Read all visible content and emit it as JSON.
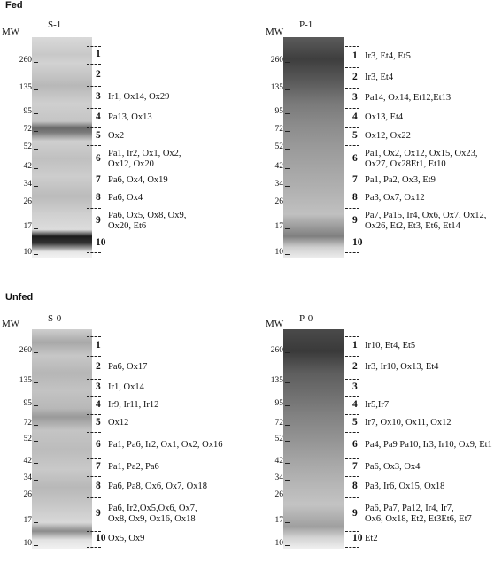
{
  "panels": [
    {
      "id": "S-1",
      "condition": "Fed",
      "mw_label": "MW",
      "lane_label": "S-1",
      "mw_ticks": [
        "260",
        "135",
        "95",
        "72",
        "52",
        "42",
        "34",
        "26",
        "17",
        "10"
      ],
      "bands": [
        {
          "num": "1",
          "text": ""
        },
        {
          "num": "2",
          "text": ""
        },
        {
          "num": "3",
          "text": "Ir1, Ox14, Ox29"
        },
        {
          "num": "4",
          "text": "Pa13, Ox13"
        },
        {
          "num": "5",
          "text": "Ox2"
        },
        {
          "num": "6",
          "text": "Pa1, Ir2, Ox1, Ox2,\nOx12, Ox20"
        },
        {
          "num": "7",
          "text": "Pa6, Ox4, Ox19"
        },
        {
          "num": "8",
          "text": "Pa6, Ox4"
        },
        {
          "num": "9",
          "text": "Pa6, Ox5, Ox8, Ox9,\nOx20, Et6"
        },
        {
          "num": "10",
          "text": ""
        }
      ]
    },
    {
      "id": "P-1",
      "condition": "",
      "mw_label": "MW",
      "lane_label": "P-1",
      "mw_ticks": [
        "260",
        "135",
        "95",
        "72",
        "52",
        "42",
        "34",
        "26",
        "17",
        "10"
      ],
      "bands": [
        {
          "num": "1",
          "text": "Ir3, Et4, Et5"
        },
        {
          "num": "2",
          "text": "Ir3, Et4"
        },
        {
          "num": "3",
          "text": "Pa14, Ox14, Et12,Et13"
        },
        {
          "num": "4",
          "text": "Ox13, Et4"
        },
        {
          "num": "5",
          "text": "Ox12, Ox22"
        },
        {
          "num": "6",
          "text": "Pa1, Ox2, Ox12, Ox15, Ox23,\nOx27, Ox28Et1, Et10"
        },
        {
          "num": "7",
          "text": "Pa1, Pa2, Ox3, Et9"
        },
        {
          "num": "8",
          "text": "Pa3, Ox7, Ox12"
        },
        {
          "num": "9",
          "text": "Pa7, Pa15, Ir4, Ox6, Ox7, Ox12,\nOx26, Et2, Et3, Et6, Et14"
        },
        {
          "num": "10",
          "text": ""
        }
      ]
    },
    {
      "id": "S-0",
      "condition": "Unfed",
      "mw_label": "MW",
      "lane_label": "S-0",
      "mw_ticks": [
        "260",
        "135",
        "95",
        "72",
        "52",
        "42",
        "34",
        "26",
        "17",
        "10"
      ],
      "bands": [
        {
          "num": "1",
          "text": ""
        },
        {
          "num": "2",
          "text": "Pa6, Ox17"
        },
        {
          "num": "3",
          "text": "Ir1, Ox14"
        },
        {
          "num": "4",
          "text": "Ir9, Ir11, Ir12"
        },
        {
          "num": "5",
          "text": "Ox12"
        },
        {
          "num": "6",
          "text": "Pa1, Pa6, Ir2, Ox1, Ox2, Ox16"
        },
        {
          "num": "7",
          "text": "Pa1, Pa2, Pa6"
        },
        {
          "num": "8",
          "text": "Pa6, Pa8, Ox6, Ox7, Ox18"
        },
        {
          "num": "9",
          "text": "Pa6, Ir2,Ox5,Ox6, Ox7,\nOx8, Ox9, Ox16, Ox18"
        },
        {
          "num": "10",
          "text": "Ox5, Ox9"
        }
      ]
    },
    {
      "id": "P-0",
      "condition": "",
      "mw_label": "MW",
      "lane_label": "P-0",
      "mw_ticks": [
        "260",
        "135",
        "95",
        "72",
        "52",
        "42",
        "34",
        "26",
        "17",
        "10"
      ],
      "bands": [
        {
          "num": "1",
          "text": "Ir10, Et4, Et5"
        },
        {
          "num": "2",
          "text": "Ir3, Ir10, Ox13, Et4"
        },
        {
          "num": "3",
          "text": ""
        },
        {
          "num": "4",
          "text": "Ir5,Ir7"
        },
        {
          "num": "5",
          "text": "Ir7, Ox10, Ox11, Ox12"
        },
        {
          "num": "6",
          "text": "Pa4, Pa9 Pa10, Ir3, Ir10, Ox9, Et1"
        },
        {
          "num": "7",
          "text": "Pa6, Ox3, Ox4"
        },
        {
          "num": "8",
          "text": "Pa3, Ir6, Ox15, Ox18"
        },
        {
          "num": "9",
          "text": "Pa6, Pa7, Pa12, Ir4, Ir7,\nOx6, Ox18, Et2, Et3Et6, Et7"
        },
        {
          "num": "10",
          "text": "Et2"
        }
      ]
    }
  ],
  "colors": {
    "lane_light": "#bdbdbd",
    "lane_dark": "#505050",
    "text": "#111111"
  }
}
